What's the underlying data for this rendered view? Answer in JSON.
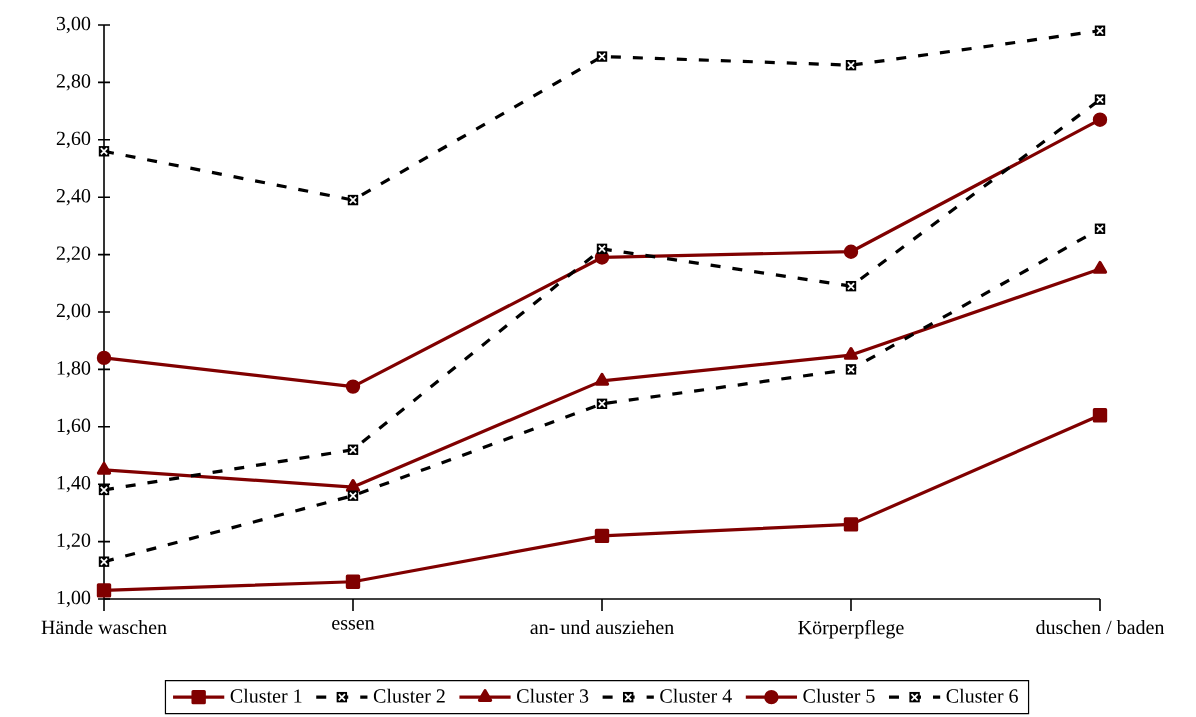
{
  "chart_data": {
    "type": "line",
    "categories": [
      "Hände waschen",
      "essen",
      "an- und ausziehen",
      "Körperpflege",
      "duschen / baden"
    ],
    "series": [
      {
        "name": "Cluster 1",
        "color": "#800000",
        "marker": "square",
        "line_style": "solid",
        "values": [
          1.03,
          1.06,
          1.22,
          1.26,
          1.64
        ]
      },
      {
        "name": "Cluster 2",
        "color": "#000000",
        "marker": "square",
        "line_style": "dashed",
        "values": [
          1.13,
          1.36,
          1.68,
          1.8,
          2.29
        ]
      },
      {
        "name": "Cluster 3",
        "color": "#800000",
        "marker": "triangle",
        "line_style": "solid",
        "values": [
          1.45,
          1.39,
          1.76,
          1.85,
          2.15
        ]
      },
      {
        "name": "Cluster 4",
        "color": "#000000",
        "marker": "square",
        "line_style": "dashed",
        "values": [
          1.38,
          1.52,
          2.22,
          2.09,
          2.74
        ]
      },
      {
        "name": "Cluster 5",
        "color": "#800000",
        "marker": "circle",
        "line_style": "solid",
        "values": [
          1.84,
          1.74,
          2.19,
          2.21,
          2.67
        ]
      },
      {
        "name": "Cluster 6",
        "color": "#000000",
        "marker": "square",
        "line_style": "dashed",
        "values": [
          2.56,
          2.39,
          2.89,
          2.86,
          2.98
        ]
      }
    ],
    "ylim": [
      1.0,
      3.0
    ],
    "yticks": [
      {
        "value": 1.0,
        "label": "1,00"
      },
      {
        "value": 1.2,
        "label": "1,20"
      },
      {
        "value": 1.4,
        "label": "1,40"
      },
      {
        "value": 1.6,
        "label": "1,60"
      },
      {
        "value": 1.8,
        "label": "1,80"
      },
      {
        "value": 2.0,
        "label": "2,00"
      },
      {
        "value": 2.2,
        "label": "2,20"
      },
      {
        "value": 2.4,
        "label": "2,40"
      },
      {
        "value": 2.6,
        "label": "2,60"
      },
      {
        "value": 2.8,
        "label": "2,80"
      },
      {
        "value": 3.0,
        "label": "3,00"
      }
    ],
    "grid": false,
    "legend": "bottom"
  }
}
